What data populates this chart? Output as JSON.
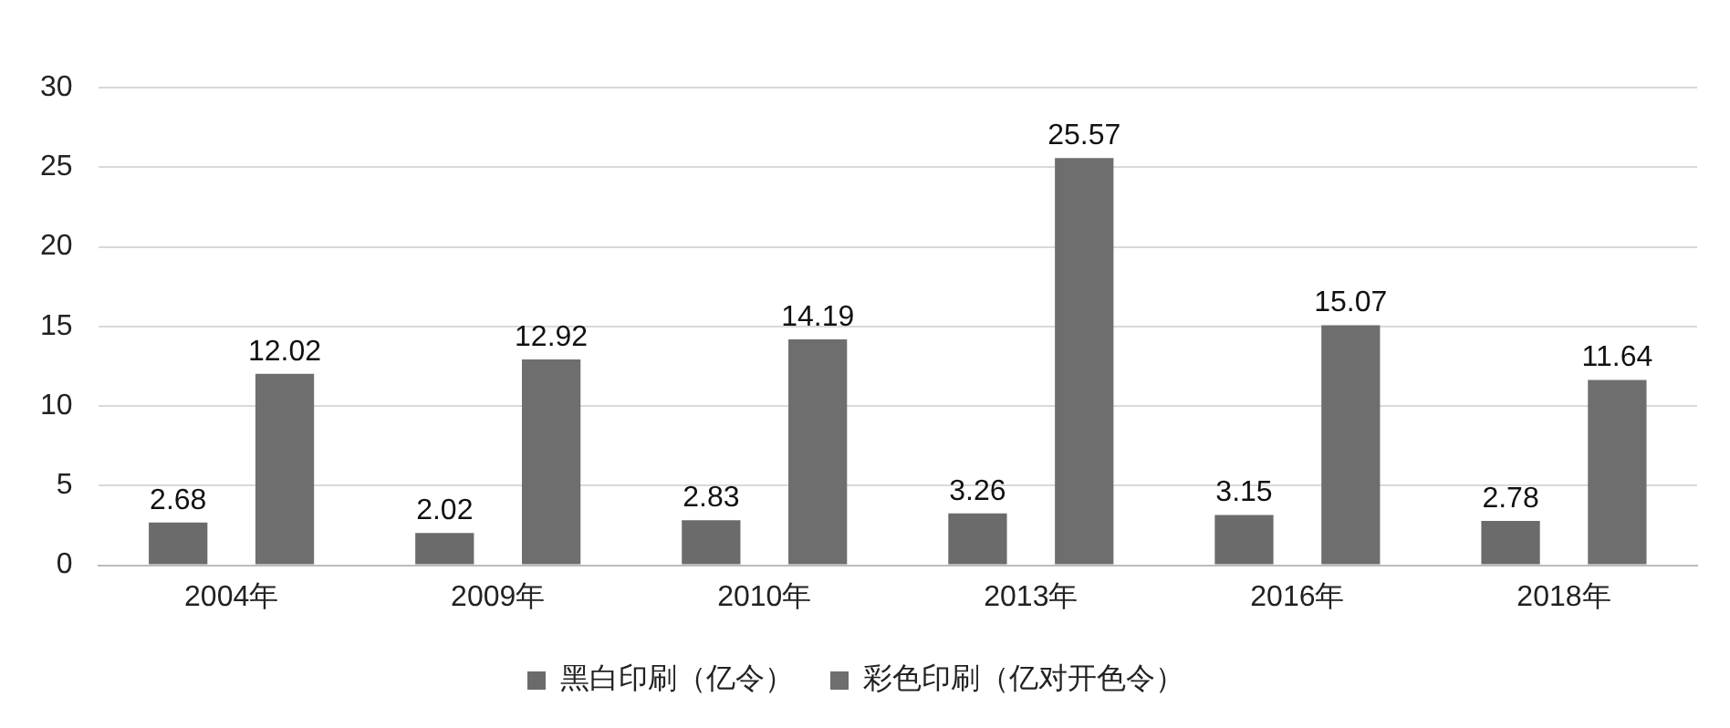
{
  "chart_data": {
    "type": "bar",
    "categories": [
      "2004年",
      "2009年",
      "2010年",
      "2013年",
      "2016年",
      "2018年"
    ],
    "series": [
      {
        "name": "黑白印刷（亿令）",
        "color": "#6b6b6b",
        "values": [
          2.68,
          2.02,
          2.83,
          3.26,
          3.15,
          2.78
        ]
      },
      {
        "name": "彩色印刷（亿对开色令）",
        "color": "#6e6e6e",
        "values": [
          12.02,
          12.92,
          14.19,
          25.57,
          15.07,
          11.64
        ]
      }
    ],
    "ylim": [
      0,
      30
    ],
    "yticks": [
      0,
      5,
      10,
      15,
      20,
      25,
      30
    ],
    "grid": "y",
    "legend": "bottom",
    "data_labels": true
  }
}
